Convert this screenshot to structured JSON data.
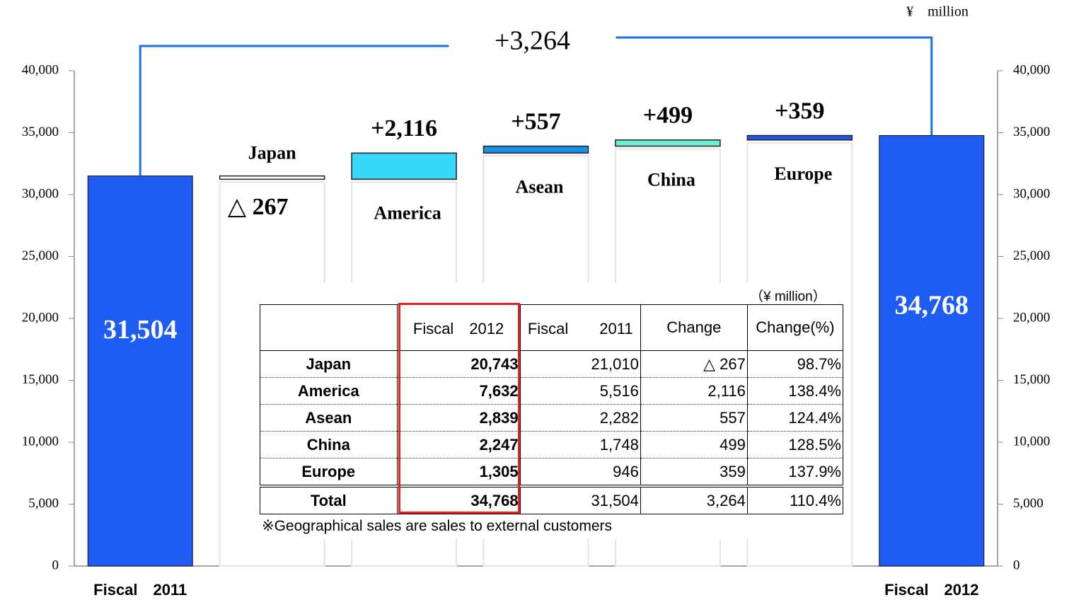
{
  "chart_data": {
    "type": "waterfall",
    "unit": "¥　million",
    "categories": [
      "Fiscal　2011",
      "Japan",
      "America",
      "Asean",
      "China",
      "Europe",
      "Fiscal　2012"
    ],
    "values": [
      31504,
      -267,
      2116,
      557,
      499,
      359,
      34768
    ],
    "value_labels": [
      "31,504",
      "△ 267",
      "+2,116",
      "+557",
      "+499",
      "+359",
      "34,768"
    ],
    "totals": [
      true,
      false,
      false,
      false,
      false,
      false,
      true
    ],
    "colors": [
      "#1f5cf2",
      "#ffffff",
      "#38d8fa",
      "#1b8fe6",
      "#6ff0d2",
      "#1b5de0",
      "#1f5cf2"
    ],
    "total_change": {
      "value": 3264,
      "label": "+3,264"
    },
    "ylim": [
      0,
      40000
    ],
    "yticks": [
      0,
      {
        "value": 5000,
        "label": "5,000"
      },
      {
        "value": 10000,
        "label": "10,000"
      },
      {
        "value": 15000,
        "label": "15,000"
      },
      {
        "value": 20000,
        "label": "20,000"
      },
      {
        "value": 25000,
        "label": "25,000"
      },
      {
        "value": 30000,
        "label": "30,000"
      },
      {
        "value": 35000,
        "label": "35,000"
      },
      {
        "value": 40000,
        "label": "40,000"
      }
    ]
  },
  "table": {
    "unit_note": "（¥ million）",
    "header": [
      "Fiscal　2012",
      "Fiscal　　2011",
      "Change",
      "Change(%)"
    ],
    "rows": [
      [
        "Japan",
        "20,743",
        "21,010",
        "△ 267",
        "98.7%"
      ],
      [
        "America",
        "7,632",
        "5,516",
        "2,116",
        "138.4%"
      ],
      [
        "Asean",
        "2,839",
        "2,282",
        "557",
        "124.4%"
      ],
      [
        "China",
        "2,247",
        "1,748",
        "499",
        "128.5%"
      ],
      [
        "Europe",
        "1,305",
        "946",
        "359",
        "137.9%"
      ],
      [
        "Total",
        "34,768",
        "31,504",
        "3,264",
        "110.4%"
      ]
    ],
    "footnote": "※Geographical sales are sales to external customers"
  }
}
